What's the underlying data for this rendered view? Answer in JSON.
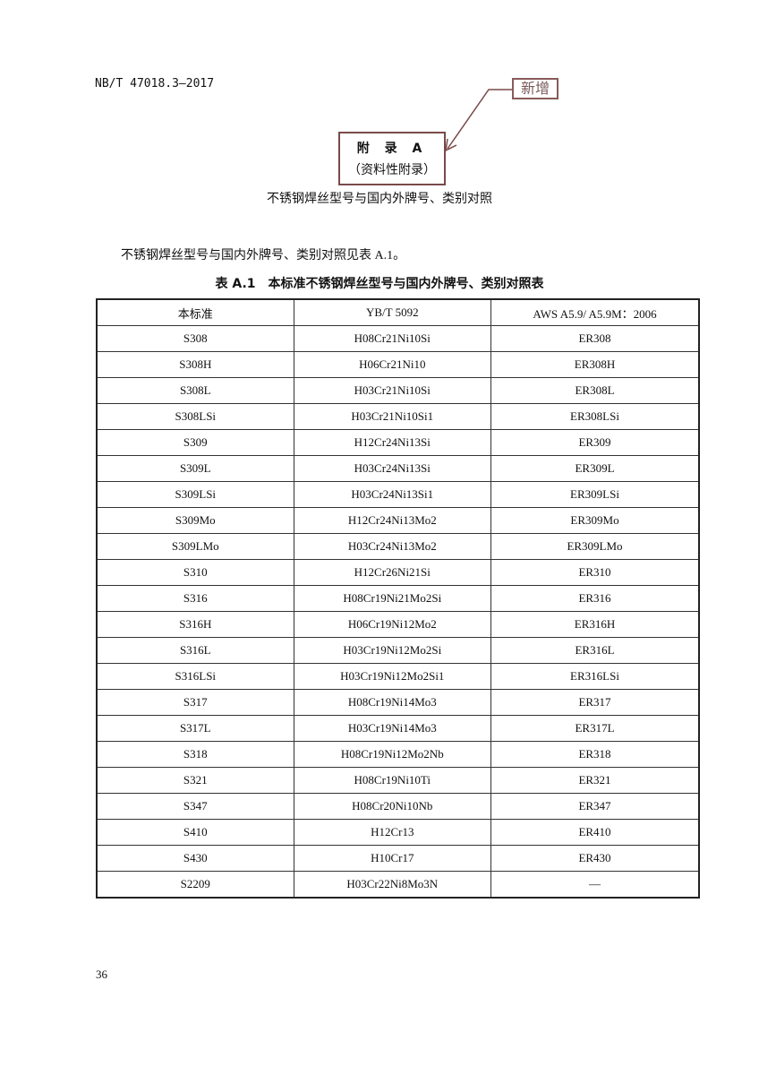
{
  "header": {
    "standard_number": "NB/T 47018.3—2017"
  },
  "annotation": {
    "label": "新增",
    "color": "#8a5a5a"
  },
  "appendix": {
    "title": "附 录 A",
    "subtitle": "（资料性附录）",
    "heading": "不锈钢焊丝型号与国内外牌号、类别对照"
  },
  "intro_text": "不锈钢焊丝型号与国内外牌号、类别对照见表 A.1。",
  "table": {
    "caption": "表 A.1　本标准不锈钢焊丝型号与国内外牌号、类别对照表",
    "headers": [
      "本标准",
      "YB/T 5092",
      "AWS A5.9/ A5.9M：2006"
    ],
    "rows": [
      [
        "S308",
        "H08Cr21Ni10Si",
        "ER308"
      ],
      [
        "S308H",
        "H06Cr21Ni10",
        "ER308H"
      ],
      [
        "S308L",
        "H03Cr21Ni10Si",
        "ER308L"
      ],
      [
        "S308LSi",
        "H03Cr21Ni10Si1",
        "ER308LSi"
      ],
      [
        "S309",
        "H12Cr24Ni13Si",
        "ER309"
      ],
      [
        "S309L",
        "H03Cr24Ni13Si",
        "ER309L"
      ],
      [
        "S309LSi",
        "H03Cr24Ni13Si1",
        "ER309LSi"
      ],
      [
        "S309Mo",
        "H12Cr24Ni13Mo2",
        "ER309Mo"
      ],
      [
        "S309LMo",
        "H03Cr24Ni13Mo2",
        "ER309LMo"
      ],
      [
        "S310",
        "H12Cr26Ni21Si",
        "ER310"
      ],
      [
        "S316",
        "H08Cr19Ni21Mo2Si",
        "ER316"
      ],
      [
        "S316H",
        "H06Cr19Ni12Mo2",
        "ER316H"
      ],
      [
        "S316L",
        "H03Cr19Ni12Mo2Si",
        "ER316L"
      ],
      [
        "S316LSi",
        "H03Cr19Ni12Mo2Si1",
        "ER316LSi"
      ],
      [
        "S317",
        "H08Cr19Ni14Mo3",
        "ER317"
      ],
      [
        "S317L",
        "H03Cr19Ni14Mo3",
        "ER317L"
      ],
      [
        "S318",
        "H08Cr19Ni12Mo2Nb",
        "ER318"
      ],
      [
        "S321",
        "H08Cr19Ni10Ti",
        "ER321"
      ],
      [
        "S347",
        "H08Cr20Ni10Nb",
        "ER347"
      ],
      [
        "S410",
        "H12Cr13",
        "ER410"
      ],
      [
        "S430",
        "H10Cr17",
        "ER430"
      ],
      [
        "S2209",
        "H03Cr22Ni8Mo3N",
        "—"
      ]
    ]
  },
  "page_number": "36"
}
